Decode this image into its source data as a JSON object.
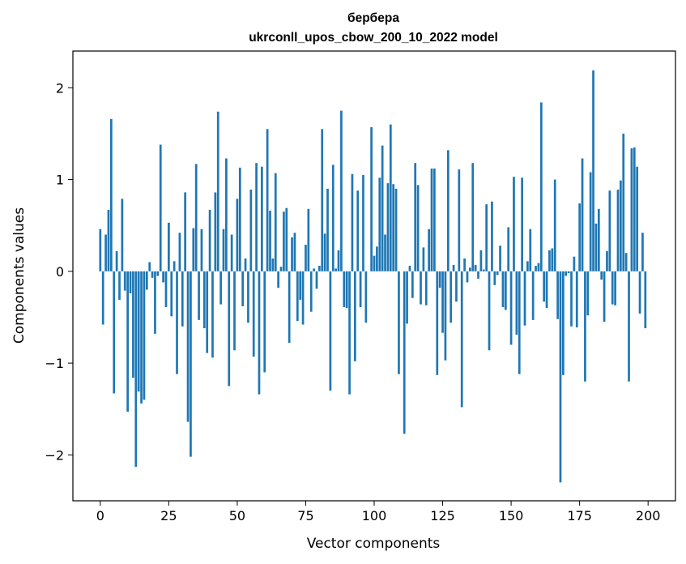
{
  "chart_data": {
    "type": "bar",
    "title": "бербера",
    "subtitle": "ukrconll_upos_cbow_200_10_2022 model",
    "xlabel": "Vector components",
    "ylabel": "Components values",
    "xlim": [
      -10,
      210
    ],
    "ylim": [
      -2.5,
      2.4
    ],
    "xticks": [
      0,
      25,
      50,
      75,
      100,
      125,
      150,
      175,
      200
    ],
    "yticks": [
      -2,
      -1,
      0,
      1,
      2
    ],
    "xtick_labels": [
      "0",
      "25",
      "50",
      "75",
      "100",
      "125",
      "150",
      "175",
      "200"
    ],
    "ytick_labels": [
      "−2",
      "−1",
      "0",
      "1",
      "2"
    ],
    "bar_color": "#1f77b4",
    "grid": false,
    "x": [
      0,
      1,
      2,
      3,
      4,
      5,
      6,
      7,
      8,
      9,
      10,
      11,
      12,
      13,
      14,
      15,
      16,
      17,
      18,
      19,
      20,
      21,
      22,
      23,
      24,
      25,
      26,
      27,
      28,
      29,
      30,
      31,
      32,
      33,
      34,
      35,
      36,
      37,
      38,
      39,
      40,
      41,
      42,
      43,
      44,
      45,
      46,
      47,
      48,
      49,
      50,
      51,
      52,
      53,
      54,
      55,
      56,
      57,
      58,
      59,
      60,
      61,
      62,
      63,
      64,
      65,
      66,
      67,
      68,
      69,
      70,
      71,
      72,
      73,
      74,
      75,
      76,
      77,
      78,
      79,
      80,
      81,
      82,
      83,
      84,
      85,
      86,
      87,
      88,
      89,
      90,
      91,
      92,
      93,
      94,
      95,
      96,
      97,
      98,
      99,
      100,
      101,
      102,
      103,
      104,
      105,
      106,
      107,
      108,
      109,
      110,
      111,
      112,
      113,
      114,
      115,
      116,
      117,
      118,
      119,
      120,
      121,
      122,
      123,
      124,
      125,
      126,
      127,
      128,
      129,
      130,
      131,
      132,
      133,
      134,
      135,
      136,
      137,
      138,
      139,
      140,
      141,
      142,
      143,
      144,
      145,
      146,
      147,
      148,
      149,
      150,
      151,
      152,
      153,
      154,
      155,
      156,
      157,
      158,
      159,
      160,
      161,
      162,
      163,
      164,
      165,
      166,
      167,
      168,
      169,
      170,
      171,
      172,
      173,
      174,
      175,
      176,
      177,
      178,
      179,
      180,
      181,
      182,
      183,
      184,
      185,
      186,
      187,
      188,
      189,
      190,
      191,
      192,
      193,
      194,
      195,
      196,
      197,
      198,
      199
    ],
    "values": [
      0.46,
      -0.58,
      0.4,
      0.67,
      1.66,
      -1.33,
      0.22,
      -0.31,
      0.79,
      -0.21,
      -1.53,
      -0.24,
      -1.16,
      -2.13,
      -1.31,
      -1.44,
      -1.4,
      -0.2,
      0.1,
      -0.07,
      -0.68,
      -0.05,
      1.38,
      -0.12,
      -0.39,
      0.53,
      -0.49,
      0.11,
      -1.12,
      0.42,
      -0.6,
      0.86,
      -1.64,
      -2.02,
      0.47,
      1.17,
      -0.53,
      0.46,
      -0.62,
      -0.89,
      0.67,
      -0.94,
      0.86,
      1.74,
      -0.36,
      0.46,
      1.23,
      -1.25,
      0.4,
      -0.86,
      0.79,
      1.13,
      -0.38,
      0.14,
      -0.56,
      0.89,
      -0.93,
      1.18,
      -1.34,
      1.14,
      -1.1,
      1.55,
      0.66,
      0.14,
      1.07,
      -0.18,
      0.05,
      0.65,
      0.69,
      -0.78,
      0.37,
      0.42,
      -0.54,
      -0.31,
      -0.58,
      0.29,
      0.68,
      -0.44,
      0.03,
      -0.19,
      0.06,
      1.55,
      0.41,
      0.9,
      -1.3,
      1.16,
      0.03,
      0.23,
      1.75,
      -0.39,
      -0.4,
      -1.34,
      1.06,
      -0.98,
      0.88,
      -0.39,
      1.05,
      -0.56,
      0.0,
      1.57,
      0.17,
      0.27,
      1.02,
      1.37,
      0.4,
      0.96,
      1.6,
      0.95,
      0.9,
      -1.12,
      0.0,
      -1.77,
      -0.57,
      0.06,
      -0.29,
      1.18,
      0.94,
      -0.36,
      0.26,
      -0.37,
      0.46,
      1.12,
      1.12,
      -1.13,
      -0.18,
      -0.67,
      -0.97,
      1.32,
      -0.56,
      0.07,
      -0.33,
      1.11,
      -1.48,
      0.14,
      -0.12,
      0.04,
      1.18,
      0.07,
      -0.08,
      0.23,
      0.02,
      0.73,
      -0.86,
      0.76,
      -0.15,
      -0.04,
      0.28,
      -0.39,
      -0.42,
      0.48,
      -0.8,
      1.03,
      -0.69,
      -1.12,
      1.02,
      -0.59,
      0.11,
      0.46,
      -0.53,
      0.06,
      0.09,
      1.84,
      -0.33,
      -0.4,
      0.23,
      0.25,
      1.0,
      -0.52,
      -2.3,
      -1.13,
      -0.05,
      -0.02,
      -0.6,
      0.16,
      -0.61,
      0.74,
      1.23,
      -1.2,
      -0.48,
      1.08,
      2.19,
      0.52,
      0.68,
      -0.09,
      -0.55,
      0.22,
      0.88,
      -0.36,
      -0.37,
      0.89,
      0.99,
      1.5,
      0.2,
      -1.2,
      1.34,
      1.35,
      1.14,
      -0.46,
      0.42,
      -0.62
    ]
  }
}
